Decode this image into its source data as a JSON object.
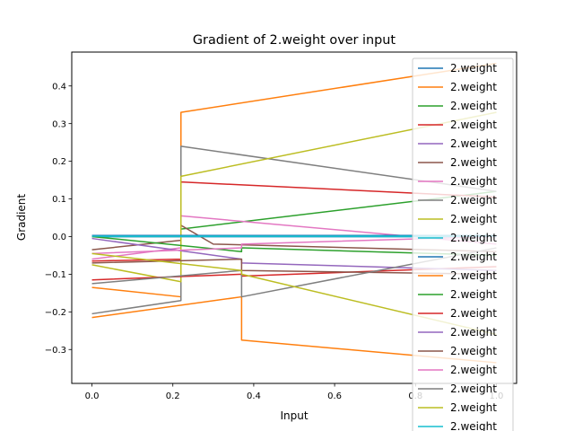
{
  "chart_data": {
    "type": "line",
    "title": "Gradient of 2.weight over input",
    "xlabel": "Input",
    "ylabel": "Gradient",
    "xlim": [
      -0.05,
      1.05
    ],
    "ylim": [
      -0.39,
      0.49
    ],
    "xticks": [
      0.0,
      0.2,
      0.4,
      0.6,
      0.8,
      1.0
    ],
    "xtick_labels": [
      "0.0",
      "0.2",
      "0.4",
      "0.6",
      "0.8",
      "1.0"
    ],
    "yticks": [
      -0.3,
      -0.2,
      -0.1,
      0.0,
      0.1,
      0.2,
      0.3,
      0.4
    ],
    "ytick_labels": [
      "−0.3",
      "−0.2",
      "−0.1",
      "0.0",
      "0.1",
      "0.2",
      "0.3",
      "0.4"
    ],
    "grid": false,
    "legend_position": "upper-right",
    "series": [
      {
        "name": "2.weight",
        "color": "#1f77b4",
        "x": [
          0,
          1
        ],
        "y": [
          0.0,
          0.0
        ]
      },
      {
        "name": "2.weight",
        "color": "#ff7f0e",
        "x": [
          0,
          0.22,
          0.22,
          1
        ],
        "y": [
          -0.135,
          -0.16,
          0.33,
          0.46
        ]
      },
      {
        "name": "2.weight",
        "color": "#2ca02c",
        "x": [
          0,
          0.22,
          0.22,
          1
        ],
        "y": [
          0.0,
          0.0,
          0.02,
          0.12
        ]
      },
      {
        "name": "2.weight",
        "color": "#d62728",
        "x": [
          0,
          0.22,
          0.22,
          1
        ],
        "y": [
          -0.065,
          -0.06,
          0.145,
          0.105
        ]
      },
      {
        "name": "2.weight",
        "color": "#9467bd",
        "x": [
          0,
          1
        ],
        "y": [
          0.0,
          0.0
        ]
      },
      {
        "name": "2.weight",
        "color": "#8c564b",
        "x": [
          0,
          0.22,
          0.22,
          0.3,
          1
        ],
        "y": [
          -0.035,
          -0.01,
          0.03,
          -0.02,
          -0.04
        ]
      },
      {
        "name": "2.weight",
        "color": "#e377c2",
        "x": [
          0,
          0.22,
          0.22,
          1
        ],
        "y": [
          -0.06,
          -0.03,
          0.055,
          -0.02
        ]
      },
      {
        "name": "2.weight",
        "color": "#7f7f7f",
        "x": [
          0,
          0.22,
          0.22,
          1
        ],
        "y": [
          -0.205,
          -0.17,
          0.24,
          0.12
        ]
      },
      {
        "name": "2.weight",
        "color": "#bcbd22",
        "x": [
          0,
          0.22,
          0.22,
          1
        ],
        "y": [
          -0.075,
          -0.12,
          0.16,
          0.33
        ]
      },
      {
        "name": "2.weight",
        "color": "#17becf",
        "x": [
          0,
          1
        ],
        "y": [
          0.0,
          0.0
        ]
      },
      {
        "name": "2.weight",
        "color": "#1f77b4",
        "x": [
          0,
          1
        ],
        "y": [
          0.003,
          0.003
        ]
      },
      {
        "name": "2.weight",
        "color": "#ff7f0e",
        "x": [
          0,
          0.37,
          0.37,
          1
        ],
        "y": [
          -0.215,
          -0.16,
          -0.275,
          -0.335
        ]
      },
      {
        "name": "2.weight",
        "color": "#2ca02c",
        "x": [
          0,
          0.37,
          0.37,
          1
        ],
        "y": [
          0.0,
          -0.04,
          -0.03,
          -0.05
        ]
      },
      {
        "name": "2.weight",
        "color": "#d62728",
        "x": [
          0,
          0.37,
          0.37,
          1
        ],
        "y": [
          -0.115,
          -0.1,
          -0.105,
          -0.08
        ]
      },
      {
        "name": "2.weight",
        "color": "#9467bd",
        "x": [
          0,
          0.37,
          0.37,
          1
        ],
        "y": [
          -0.005,
          -0.06,
          -0.07,
          -0.09
        ]
      },
      {
        "name": "2.weight",
        "color": "#8c564b",
        "x": [
          0,
          0.37,
          0.37,
          1
        ],
        "y": [
          -0.07,
          -0.06,
          -0.09,
          -0.1
        ]
      },
      {
        "name": "2.weight",
        "color": "#e377c2",
        "x": [
          0,
          0.37,
          0.37,
          1
        ],
        "y": [
          -0.045,
          -0.03,
          -0.02,
          0.0
        ]
      },
      {
        "name": "2.weight",
        "color": "#7f7f7f",
        "x": [
          0,
          0.37,
          0.37,
          1
        ],
        "y": [
          -0.125,
          -0.09,
          -0.16,
          -0.03
        ]
      },
      {
        "name": "2.weight",
        "color": "#bcbd22",
        "x": [
          0,
          0.37,
          0.37,
          1
        ],
        "y": [
          -0.045,
          -0.09,
          -0.1,
          -0.26
        ]
      },
      {
        "name": "2.weight",
        "color": "#17becf",
        "x": [
          0,
          1
        ],
        "y": [
          0.001,
          0.001
        ]
      }
    ]
  }
}
